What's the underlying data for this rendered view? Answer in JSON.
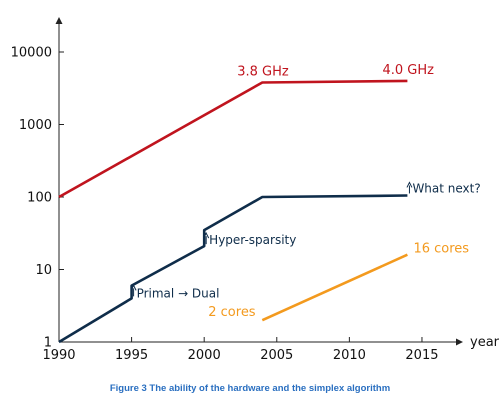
{
  "chart_data": {
    "type": "line",
    "x_scale": "linear",
    "y_scale": "log",
    "xlabel": "year",
    "ylabel": "",
    "xlim": [
      1990,
      2017
    ],
    "ylim": [
      1,
      10000
    ],
    "x_ticks": [
      1990,
      1995,
      2000,
      2005,
      2010,
      2015
    ],
    "y_ticks": [
      1,
      10,
      100,
      1000,
      10000
    ],
    "x_tick_labels": [
      "1990",
      "1995",
      "2000",
      "2005",
      "2010",
      "2015"
    ],
    "y_tick_labels": [
      "1",
      "10",
      "100",
      "1000",
      "10000"
    ],
    "grid": false,
    "series": [
      {
        "color": "#c0141e",
        "points": [
          [
            1990,
            100
          ],
          [
            2004,
            3800
          ],
          [
            2014,
            4000
          ]
        ]
      },
      {
        "color": "#0f2d4a",
        "points": [
          [
            1990,
            1
          ],
          [
            1995,
            4
          ],
          [
            1995,
            6
          ],
          [
            2000,
            21
          ],
          [
            2000,
            35
          ],
          [
            2004,
            100
          ],
          [
            2014,
            105
          ]
        ]
      },
      {
        "color": "#f39a1e",
        "points": [
          [
            2004,
            2
          ],
          [
            2014,
            16
          ]
        ]
      }
    ],
    "annotations": [
      {
        "text": "3.8 GHz",
        "x": 2004,
        "y": 3800,
        "color": "#c0141e",
        "arrow": false
      },
      {
        "text": "4.0 GHz",
        "x": 2014,
        "y": 4000,
        "color": "#c0141e",
        "arrow": false
      },
      {
        "text": "What next?",
        "x": 2014,
        "y": 105,
        "color": "#0f2d4a",
        "arrow": true
      },
      {
        "text": "Hyper-sparsity",
        "x": 2000,
        "y": 21,
        "color": "#0f2d4a",
        "arrow": true
      },
      {
        "text": "Primal → Dual",
        "x": 1995,
        "y": 4,
        "color": "#0f2d4a",
        "arrow": true
      },
      {
        "text": "16 cores",
        "x": 2014,
        "y": 16,
        "color": "#f39a1e",
        "arrow": false
      },
      {
        "text": "2 cores",
        "x": 2004,
        "y": 2,
        "color": "#f39a1e",
        "arrow": false
      }
    ]
  },
  "caption": {
    "text": "Figure 3 The ability of the hardware and the simplex algorithm",
    "color": "#2a6fc0"
  }
}
